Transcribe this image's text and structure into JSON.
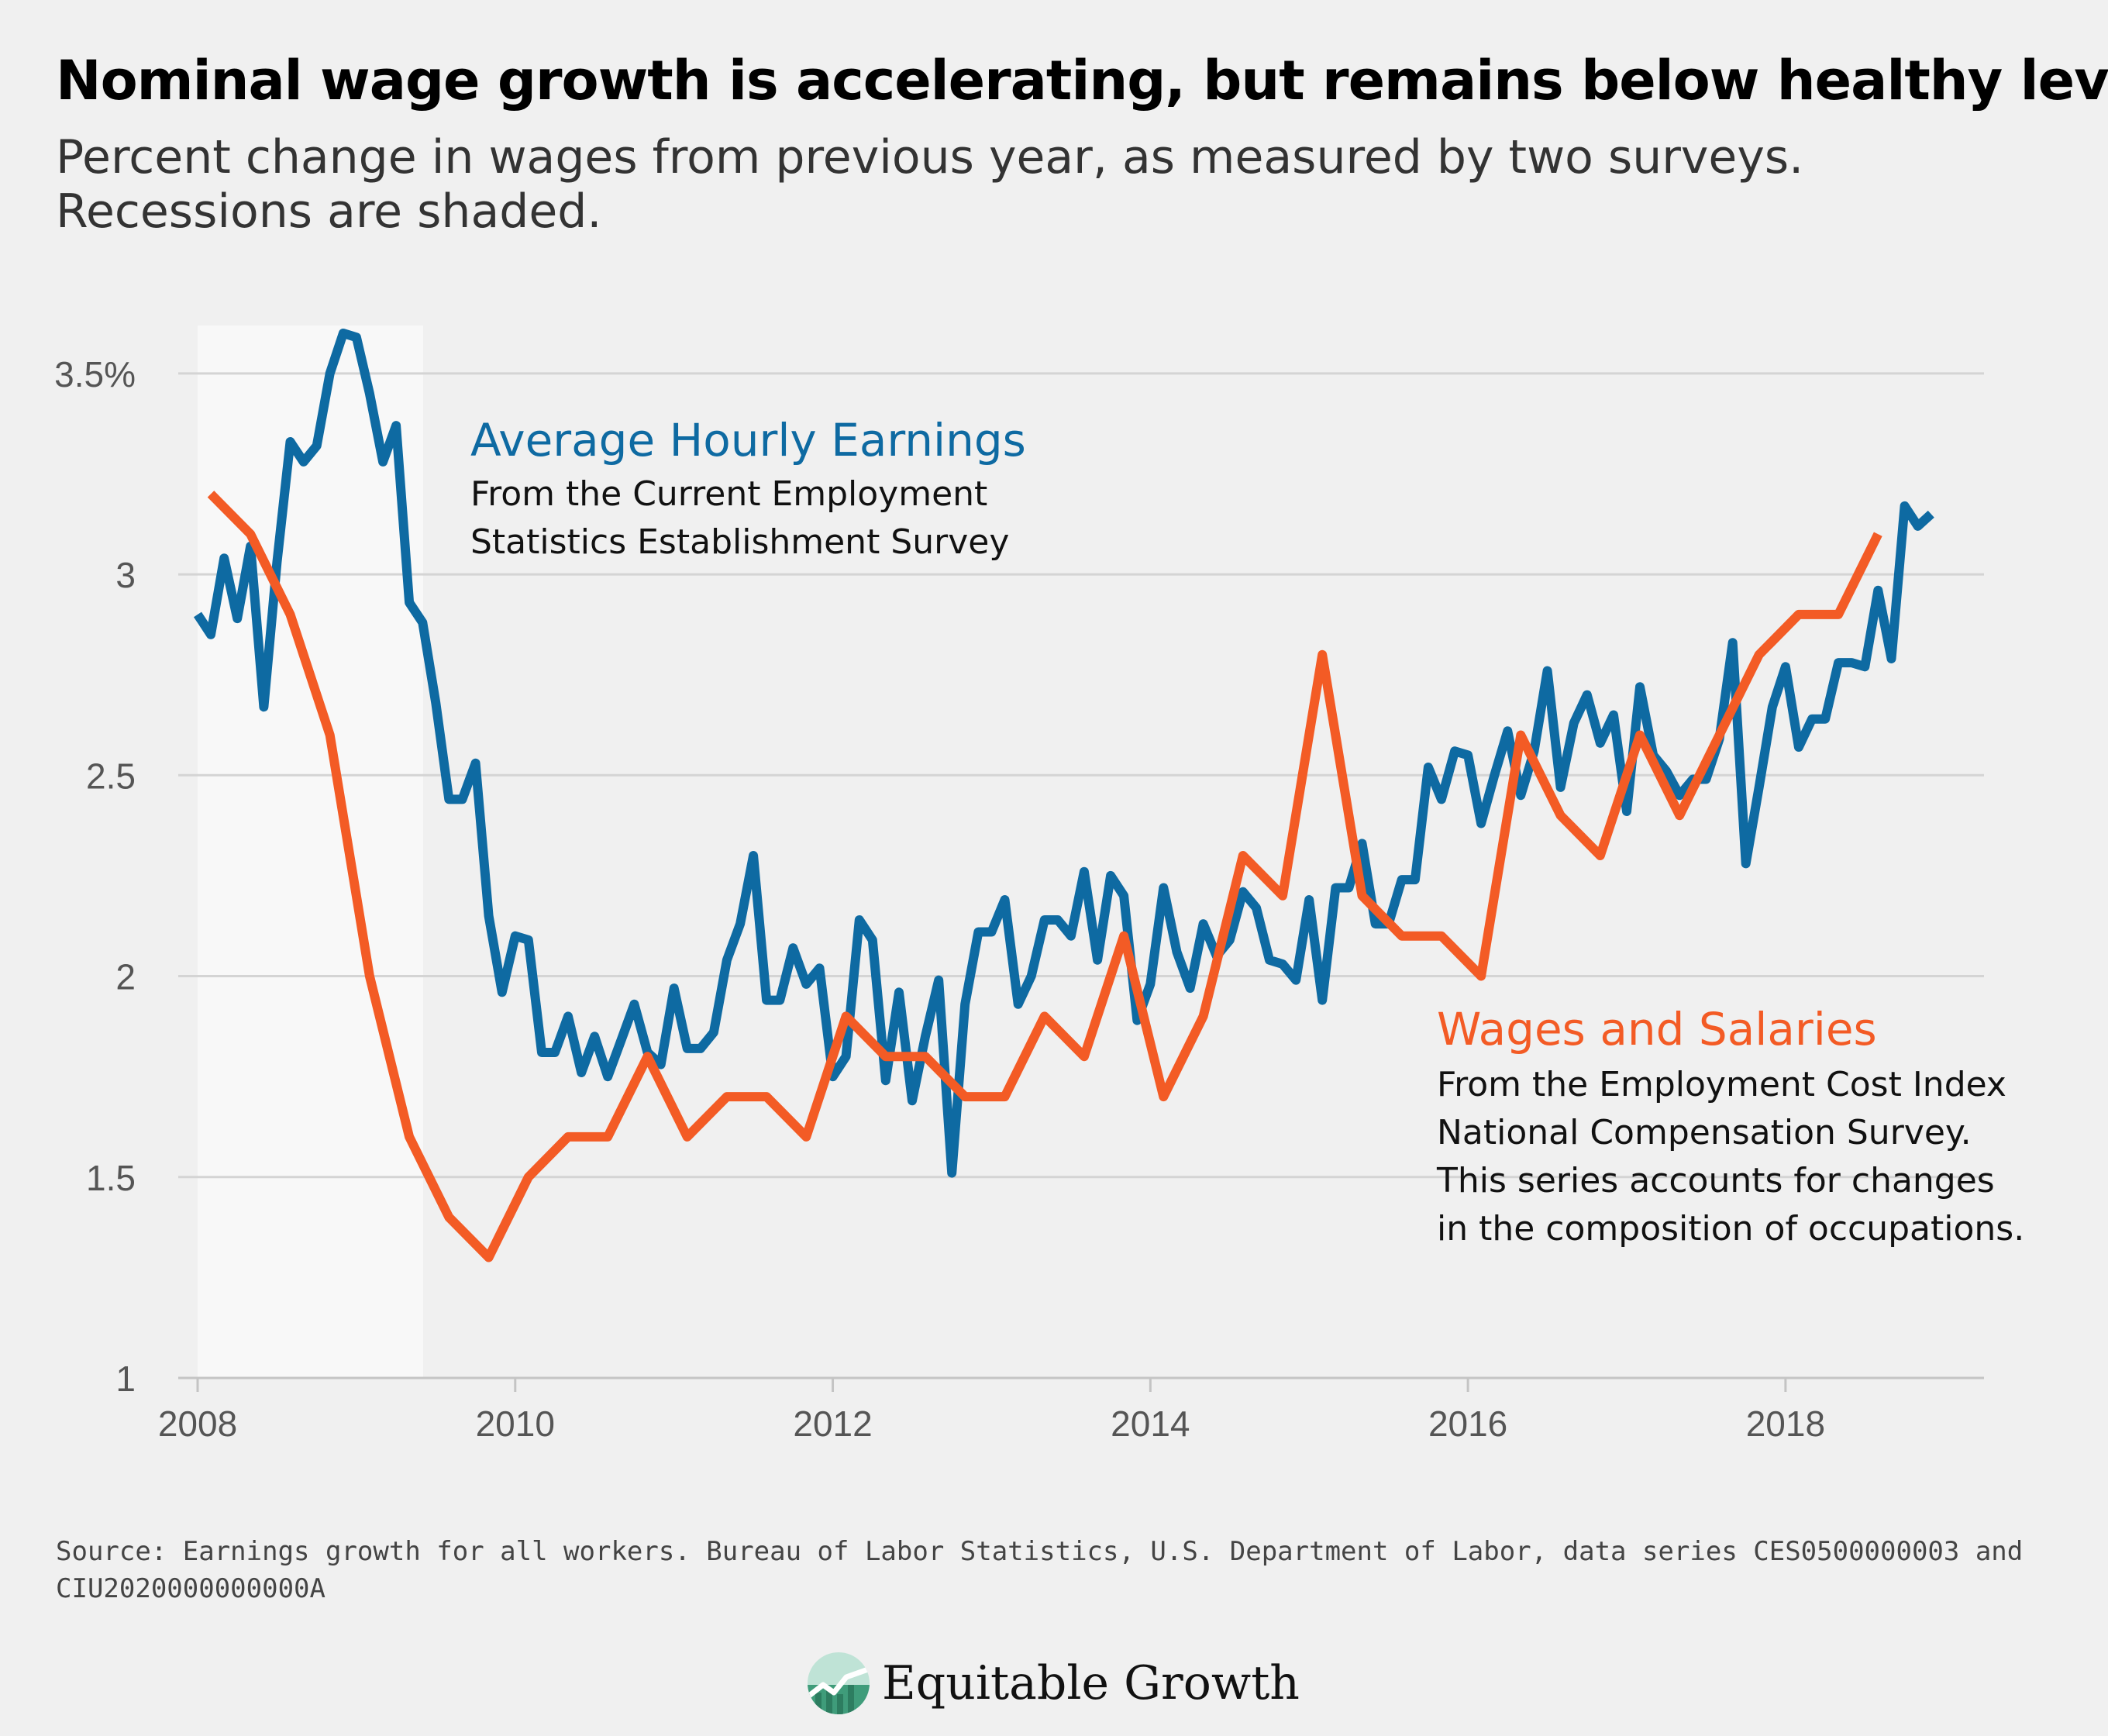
{
  "title": "Nominal wage growth is accelerating, but remains below healthy levels",
  "subtitle": "Percent change in wages from previous year, as measured by two surveys. Recessions are shaded.",
  "source": "Source: Earnings growth for all workers. Bureau of Labor Statistics, U.S. Department of Labor, data series CES0500000003 and CIU2020000000000A",
  "logo": {
    "text": "Equitable Growth",
    "icon": "rising-line-globe-icon"
  },
  "colors": {
    "ahe": "#0e6aa2",
    "ws": "#f35b25",
    "recession": "#f8f8f8",
    "grid": "#d4d4d4",
    "background": "#f0f0f0"
  },
  "chart_data": {
    "type": "line",
    "title": "Nominal wage growth is accelerating, but remains below healthy levels",
    "subtitle": "Percent change in wages from previous year, as measured by two surveys. Recessions are shaded.",
    "xlim": [
      2008,
      2019.25
    ],
    "ylim": [
      1,
      3.6
    ],
    "y_ticks": [
      {
        "value": 1,
        "label": "1"
      },
      {
        "value": 1.5,
        "label": "1.5"
      },
      {
        "value": 2,
        "label": "2"
      },
      {
        "value": 2.5,
        "label": "2.5"
      },
      {
        "value": 3,
        "label": "3"
      },
      {
        "value": 3.5,
        "label": "3.5%"
      }
    ],
    "x_ticks": [
      {
        "value": 2008,
        "label": "2008"
      },
      {
        "value": 2010,
        "label": "2010"
      },
      {
        "value": 2012,
        "label": "2012"
      },
      {
        "value": 2014,
        "label": "2014"
      },
      {
        "value": 2016,
        "label": "2016"
      },
      {
        "value": 2018,
        "label": "2018"
      }
    ],
    "grid": true,
    "recessions": [
      {
        "start": 2008.0,
        "end": 2009.42
      }
    ],
    "series": [
      {
        "name": "Average Hourly Earnings",
        "color": "#0e6aa2",
        "annotation": [
          "From the Current Employment",
          "Statistics Establishment Survey"
        ],
        "points": [
          [
            2008.0,
            2.9
          ],
          [
            2008.083,
            2.85
          ],
          [
            2008.167,
            3.04
          ],
          [
            2008.25,
            2.89
          ],
          [
            2008.333,
            3.07
          ],
          [
            2008.417,
            2.67
          ],
          [
            2008.5,
            3.03
          ],
          [
            2008.583,
            3.33
          ],
          [
            2008.667,
            3.28
          ],
          [
            2008.75,
            3.32
          ],
          [
            2008.833,
            3.5
          ],
          [
            2008.917,
            3.6
          ],
          [
            2009.0,
            3.59
          ],
          [
            2009.083,
            3.45
          ],
          [
            2009.167,
            3.28
          ],
          [
            2009.25,
            3.37
          ],
          [
            2009.333,
            2.93
          ],
          [
            2009.417,
            2.88
          ],
          [
            2009.5,
            2.68
          ],
          [
            2009.583,
            2.44
          ],
          [
            2009.667,
            2.44
          ],
          [
            2009.75,
            2.53
          ],
          [
            2009.833,
            2.15
          ],
          [
            2009.917,
            1.96
          ],
          [
            2010.0,
            2.1
          ],
          [
            2010.083,
            2.09
          ],
          [
            2010.167,
            1.81
          ],
          [
            2010.25,
            1.81
          ],
          [
            2010.333,
            1.9
          ],
          [
            2010.417,
            1.76
          ],
          [
            2010.5,
            1.85
          ],
          [
            2010.583,
            1.75
          ],
          [
            2010.667,
            1.84
          ],
          [
            2010.75,
            1.93
          ],
          [
            2010.833,
            1.81
          ],
          [
            2010.917,
            1.78
          ],
          [
            2011.0,
            1.97
          ],
          [
            2011.083,
            1.82
          ],
          [
            2011.167,
            1.82
          ],
          [
            2011.25,
            1.86
          ],
          [
            2011.333,
            2.04
          ],
          [
            2011.417,
            2.13
          ],
          [
            2011.5,
            2.3
          ],
          [
            2011.583,
            1.94
          ],
          [
            2011.667,
            1.94
          ],
          [
            2011.75,
            2.07
          ],
          [
            2011.833,
            1.98
          ],
          [
            2011.917,
            2.02
          ],
          [
            2012.0,
            1.75
          ],
          [
            2012.083,
            1.8
          ],
          [
            2012.167,
            2.14
          ],
          [
            2012.25,
            2.09
          ],
          [
            2012.333,
            1.74
          ],
          [
            2012.417,
            1.96
          ],
          [
            2012.5,
            1.69
          ],
          [
            2012.583,
            1.85
          ],
          [
            2012.667,
            1.99
          ],
          [
            2012.75,
            1.51
          ],
          [
            2012.833,
            1.93
          ],
          [
            2012.917,
            2.11
          ],
          [
            2013.0,
            2.11
          ],
          [
            2013.083,
            2.19
          ],
          [
            2013.167,
            1.93
          ],
          [
            2013.25,
            2.0
          ],
          [
            2013.333,
            2.14
          ],
          [
            2013.417,
            2.14
          ],
          [
            2013.5,
            2.1
          ],
          [
            2013.583,
            2.26
          ],
          [
            2013.667,
            2.04
          ],
          [
            2013.75,
            2.25
          ],
          [
            2013.833,
            2.2
          ],
          [
            2013.917,
            1.89
          ],
          [
            2014.0,
            1.98
          ],
          [
            2014.083,
            2.22
          ],
          [
            2014.167,
            2.06
          ],
          [
            2014.25,
            1.97
          ],
          [
            2014.333,
            2.13
          ],
          [
            2014.417,
            2.05
          ],
          [
            2014.5,
            2.09
          ],
          [
            2014.583,
            2.21
          ],
          [
            2014.667,
            2.17
          ],
          [
            2014.75,
            2.04
          ],
          [
            2014.833,
            2.03
          ],
          [
            2014.917,
            1.99
          ],
          [
            2015.0,
            2.19
          ],
          [
            2015.083,
            1.94
          ],
          [
            2015.167,
            2.22
          ],
          [
            2015.25,
            2.22
          ],
          [
            2015.333,
            2.33
          ],
          [
            2015.417,
            2.13
          ],
          [
            2015.5,
            2.13
          ],
          [
            2015.583,
            2.24
          ],
          [
            2015.667,
            2.24
          ],
          [
            2015.75,
            2.52
          ],
          [
            2015.833,
            2.44
          ],
          [
            2015.917,
            2.56
          ],
          [
            2016.0,
            2.55
          ],
          [
            2016.083,
            2.38
          ],
          [
            2016.167,
            2.5
          ],
          [
            2016.25,
            2.61
          ],
          [
            2016.333,
            2.45
          ],
          [
            2016.417,
            2.56
          ],
          [
            2016.5,
            2.76
          ],
          [
            2016.583,
            2.47
          ],
          [
            2016.667,
            2.63
          ],
          [
            2016.75,
            2.7
          ],
          [
            2016.833,
            2.58
          ],
          [
            2016.917,
            2.65
          ],
          [
            2017.0,
            2.41
          ],
          [
            2017.083,
            2.72
          ],
          [
            2017.167,
            2.55
          ],
          [
            2017.25,
            2.51
          ],
          [
            2017.333,
            2.45
          ],
          [
            2017.417,
            2.49
          ],
          [
            2017.5,
            2.49
          ],
          [
            2017.583,
            2.59
          ],
          [
            2017.667,
            2.83
          ],
          [
            2017.75,
            2.28
          ],
          [
            2017.833,
            2.47
          ],
          [
            2017.917,
            2.67
          ],
          [
            2018.0,
            2.77
          ],
          [
            2018.083,
            2.57
          ],
          [
            2018.167,
            2.64
          ],
          [
            2018.25,
            2.64
          ],
          [
            2018.333,
            2.78
          ],
          [
            2018.417,
            2.78
          ],
          [
            2018.5,
            2.77
          ],
          [
            2018.583,
            2.96
          ],
          [
            2018.667,
            2.79
          ],
          [
            2018.75,
            3.17
          ],
          [
            2018.833,
            3.12
          ],
          [
            2018.917,
            3.15
          ]
        ]
      },
      {
        "name": "Wages and Salaries",
        "color": "#f35b25",
        "annotation": [
          "From the Employment Cost Index",
          "National Compensation Survey.",
          "This series accounts for changes",
          "in the composition of occupations."
        ],
        "points": [
          [
            2008.083,
            3.2
          ],
          [
            2008.333,
            3.1
          ],
          [
            2008.583,
            2.9
          ],
          [
            2008.833,
            2.6
          ],
          [
            2009.083,
            2.0
          ],
          [
            2009.333,
            1.6
          ],
          [
            2009.583,
            1.4
          ],
          [
            2009.833,
            1.3
          ],
          [
            2010.083,
            1.5
          ],
          [
            2010.333,
            1.6
          ],
          [
            2010.583,
            1.6
          ],
          [
            2010.833,
            1.8
          ],
          [
            2011.083,
            1.6
          ],
          [
            2011.333,
            1.7
          ],
          [
            2011.583,
            1.7
          ],
          [
            2011.833,
            1.6
          ],
          [
            2012.083,
            1.9
          ],
          [
            2012.333,
            1.8
          ],
          [
            2012.583,
            1.8
          ],
          [
            2012.833,
            1.7
          ],
          [
            2013.083,
            1.7
          ],
          [
            2013.333,
            1.9
          ],
          [
            2013.583,
            1.8
          ],
          [
            2013.833,
            2.1
          ],
          [
            2014.083,
            1.7
          ],
          [
            2014.333,
            1.9
          ],
          [
            2014.583,
            2.3
          ],
          [
            2014.833,
            2.2
          ],
          [
            2015.083,
            2.8
          ],
          [
            2015.333,
            2.2
          ],
          [
            2015.583,
            2.1
          ],
          [
            2015.833,
            2.1
          ],
          [
            2016.083,
            2.0
          ],
          [
            2016.333,
            2.6
          ],
          [
            2016.583,
            2.4
          ],
          [
            2016.833,
            2.3
          ],
          [
            2017.083,
            2.6
          ],
          [
            2017.333,
            2.4
          ],
          [
            2017.583,
            2.6
          ],
          [
            2017.833,
            2.8
          ],
          [
            2018.083,
            2.9
          ],
          [
            2018.333,
            2.9
          ],
          [
            2018.583,
            3.1
          ]
        ]
      }
    ]
  }
}
